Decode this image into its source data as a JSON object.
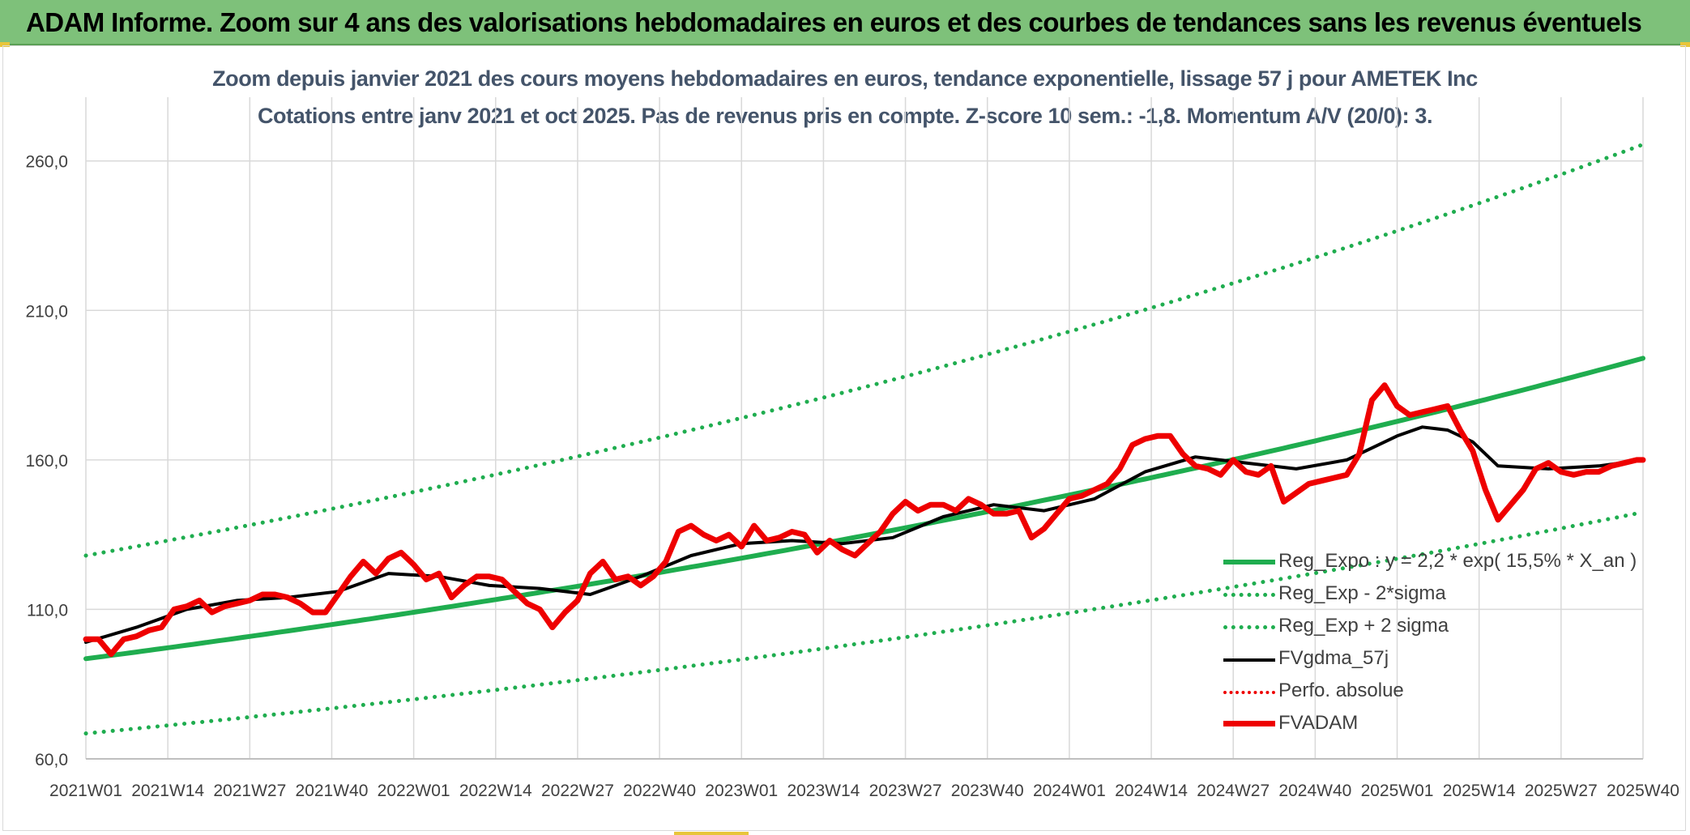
{
  "header": {
    "title": "ADAM Informe. Zoom sur 4 ans des valorisations hebdomadaires en euros et des courbes de tendances sans les revenus éventuels"
  },
  "colors": {
    "banner_bg": "#7ec17a",
    "trend_green": "#1fad4f",
    "price_red": "#ee0000",
    "smooth_black": "#000000",
    "grid": "#d9d9d9",
    "axis_text": "#404040",
    "subtitle_text": "#44546a"
  },
  "chart_data": {
    "type": "line",
    "title": "Zoom depuis janvier 2021 des cours moyens hebdomadaires en euros, tendance exponentielle, lissage 57 j pour AMETEK Inc",
    "subtitle": "Cotations entre janv 2021 et oct 2025. Pas de revenus pris en compte. Z-score 10 sem.: -1,8. Momentum A/V (20/0): 3.",
    "xlabel": "",
    "ylabel": "",
    "ylim": [
      60,
      290
    ],
    "y_ticks": [
      "60,0",
      "110,0",
      "160,0",
      "210,0",
      "260,0"
    ],
    "y_tick_values": [
      60,
      110,
      160,
      210,
      260
    ],
    "x_tick_labels": [
      "2021W01",
      "2021W14",
      "2021W27",
      "2021W40",
      "2022W01",
      "2022W14",
      "2022W27",
      "2022W40",
      "2023W01",
      "2023W14",
      "2023W27",
      "2023W40",
      "2024W01",
      "2024W14",
      "2024W27",
      "2024W40",
      "2025W01",
      "2025W14",
      "2025W27",
      "2025W40"
    ],
    "x_range_weeks": [
      0,
      247
    ],
    "legend_position": "right",
    "series": [
      {
        "name": "Reg_Expo : y = 2,2 * exp( 15,5% * X_an )",
        "style": "solid",
        "color": "#1fad4f",
        "width": 6,
        "x": [
          0,
          247
        ],
        "values": [
          93.5,
          194
        ],
        "curve": "exponential"
      },
      {
        "name": "Reg_Exp - 2*sigma",
        "style": "dotted",
        "color": "#1fad4f",
        "width": 5,
        "x": [
          0,
          247
        ],
        "values": [
          68.5,
          142.5
        ],
        "curve": "exponential"
      },
      {
        "name": "Reg_Exp + 2 sigma",
        "style": "dotted",
        "color": "#1fad4f",
        "width": 5,
        "x": [
          0,
          247
        ],
        "values": [
          128,
          265.5
        ],
        "curve": "exponential"
      },
      {
        "name": "FVgdma_57j",
        "style": "solid",
        "color": "#000000",
        "width": 4,
        "x": [
          0,
          8,
          16,
          24,
          32,
          40,
          48,
          56,
          64,
          72,
          80,
          88,
          96,
          104,
          112,
          120,
          128,
          136,
          144,
          152,
          160,
          168,
          176,
          184,
          192,
          200,
          208,
          212,
          216,
          220,
          224,
          232,
          240,
          247
        ],
        "values": [
          99,
          104,
          110,
          113,
          114,
          116,
          122,
          121,
          118,
          117,
          115,
          121,
          128,
          132,
          133,
          132,
          134,
          141,
          145,
          143,
          147,
          156,
          161,
          159,
          157,
          160,
          168,
          171,
          170,
          166,
          158,
          157,
          158,
          160
        ]
      },
      {
        "name": "Perfo. absolue",
        "style": "dotted",
        "color": "#ee0000",
        "width": 4,
        "x": [],
        "values": []
      },
      {
        "name": "FVADAM",
        "style": "solid",
        "color": "#ee0000",
        "width": 7,
        "x": [
          0,
          2,
          4,
          6,
          8,
          10,
          12,
          14,
          16,
          18,
          20,
          22,
          24,
          26,
          28,
          30,
          32,
          34,
          36,
          38,
          40,
          42,
          44,
          46,
          48,
          50,
          52,
          54,
          56,
          58,
          60,
          62,
          64,
          66,
          68,
          70,
          72,
          74,
          76,
          78,
          80,
          82,
          84,
          86,
          88,
          90,
          92,
          94,
          96,
          98,
          100,
          102,
          104,
          106,
          108,
          110,
          112,
          114,
          116,
          118,
          120,
          122,
          124,
          126,
          128,
          130,
          132,
          134,
          136,
          138,
          140,
          142,
          144,
          146,
          148,
          150,
          152,
          154,
          156,
          158,
          160,
          162,
          164,
          166,
          168,
          170,
          172,
          174,
          176,
          178,
          180,
          182,
          184,
          186,
          188,
          190,
          192,
          194,
          196,
          198,
          200,
          202,
          204,
          206,
          208,
          210,
          212,
          214,
          216,
          218,
          220,
          222,
          224,
          226,
          228,
          230,
          232,
          234,
          236,
          238,
          240,
          242,
          244,
          246,
          247
        ],
        "values": [
          100,
          100,
          95,
          100,
          101,
          103,
          104,
          110,
          111,
          113,
          109,
          111,
          112,
          113,
          115,
          115,
          114,
          112,
          109,
          109,
          115,
          121,
          126,
          122,
          127,
          129,
          125,
          120,
          122,
          114,
          118,
          121,
          121,
          120,
          116,
          112,
          110,
          104,
          109,
          113,
          122,
          126,
          120,
          121,
          118,
          121,
          126,
          136,
          138,
          135,
          133,
          135,
          131,
          138,
          133,
          134,
          136,
          135,
          129,
          133,
          130,
          128,
          132,
          136,
          142,
          146,
          143,
          145,
          145,
          143,
          147,
          145,
          142,
          142,
          143,
          134,
          137,
          142,
          147,
          148,
          150,
          152,
          157,
          165,
          167,
          168,
          168,
          162,
          158,
          157,
          155,
          160,
          156,
          155,
          158,
          146,
          149,
          152,
          153,
          154,
          155,
          162,
          180,
          185,
          178,
          175,
          176,
          177,
          178,
          170,
          163,
          150,
          140,
          145,
          150,
          157,
          159,
          156,
          155,
          156,
          156,
          158,
          159,
          160,
          160
        ]
      }
    ]
  }
}
